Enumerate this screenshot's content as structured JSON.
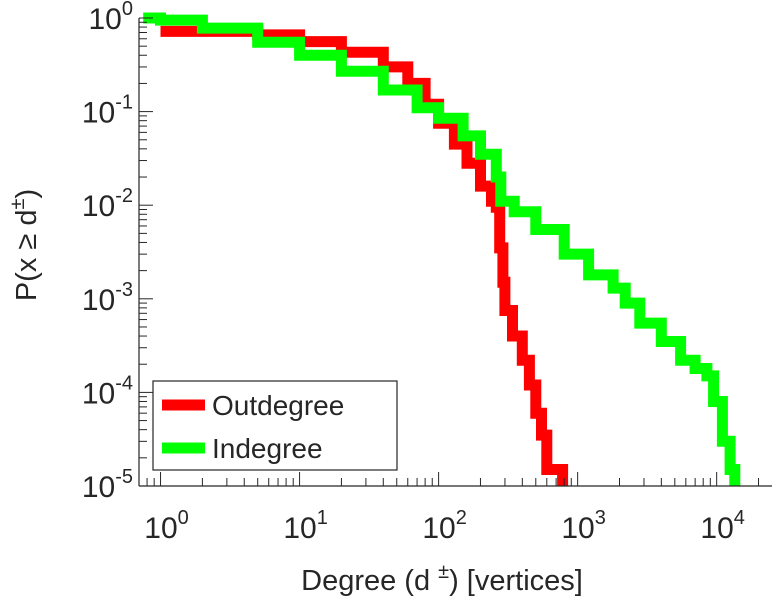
{
  "chart_data": {
    "type": "line",
    "xscale": "log",
    "yscale": "log",
    "xlim": [
      0.7,
      25000
    ],
    "ylim": [
      1e-05,
      1
    ],
    "xticks": [
      {
        "value": 1,
        "base": "10",
        "exp": "0"
      },
      {
        "value": 10,
        "base": "10",
        "exp": "1"
      },
      {
        "value": 100,
        "base": "10",
        "exp": "2"
      },
      {
        "value": 1000,
        "base": "10",
        "exp": "3"
      },
      {
        "value": 10000,
        "base": "10",
        "exp": "4"
      }
    ],
    "yticks": [
      {
        "value": 1,
        "base": "10",
        "exp": "0"
      },
      {
        "value": 0.1,
        "base": "10",
        "exp": "-1"
      },
      {
        "value": 0.01,
        "base": "10",
        "exp": "-2"
      },
      {
        "value": 0.001,
        "base": "10",
        "exp": "-3"
      },
      {
        "value": 0.0001,
        "base": "10",
        "exp": "-4"
      },
      {
        "value": 1e-05,
        "base": "10",
        "exp": "-5"
      }
    ],
    "xlabel": {
      "pre": "Degree (d",
      "sup": "±",
      "post": ") [vertices]"
    },
    "ylabel": {
      "pre": "P(x ≥ d",
      "sup": "±",
      "post": ")"
    },
    "grid": false,
    "legend_position": "bottom-left",
    "series": [
      {
        "name": "Outdegree",
        "color": "#ff0000",
        "points": [
          [
            1,
            0.72
          ],
          [
            2,
            0.72
          ],
          [
            5,
            0.66
          ],
          [
            10,
            0.56
          ],
          [
            20,
            0.43
          ],
          [
            40,
            0.3
          ],
          [
            60,
            0.2
          ],
          [
            80,
            0.12
          ],
          [
            100,
            0.075
          ],
          [
            130,
            0.045
          ],
          [
            160,
            0.028
          ],
          [
            200,
            0.016
          ],
          [
            240,
            0.011
          ],
          [
            260,
            0.0095
          ],
          [
            275,
            0.0035
          ],
          [
            290,
            0.0015
          ],
          [
            300,
            0.00075
          ],
          [
            340,
            0.0004
          ],
          [
            400,
            0.00022
          ],
          [
            450,
            0.00012
          ],
          [
            500,
            6e-05
          ],
          [
            550,
            3.5e-05
          ],
          [
            600,
            1.5e-05
          ],
          [
            650,
            1.5e-05
          ],
          [
            700,
            1.5e-05
          ],
          [
            750,
            1.5e-05
          ],
          [
            780,
            6.8e-06
          ]
        ]
      },
      {
        "name": "Indegree",
        "color": "#00ff00",
        "points": [
          [
            0.75,
            1
          ],
          [
            1,
            0.95
          ],
          [
            2,
            0.78
          ],
          [
            5,
            0.55
          ],
          [
            10,
            0.4
          ],
          [
            20,
            0.27
          ],
          [
            40,
            0.17
          ],
          [
            70,
            0.11
          ],
          [
            100,
            0.085
          ],
          [
            150,
            0.055
          ],
          [
            200,
            0.035
          ],
          [
            260,
            0.02
          ],
          [
            280,
            0.011
          ],
          [
            350,
            0.0085
          ],
          [
            500,
            0.0055
          ],
          [
            800,
            0.003
          ],
          [
            1200,
            0.0018
          ],
          [
            1800,
            0.0013
          ],
          [
            2200,
            0.0009
          ],
          [
            2800,
            0.00055
          ],
          [
            4000,
            0.00035
          ],
          [
            5500,
            0.00022
          ],
          [
            7000,
            0.00018
          ],
          [
            8500,
            0.00015
          ],
          [
            9500,
            8e-05
          ],
          [
            11000,
            3e-05
          ],
          [
            12500,
            1.5e-05
          ],
          [
            13500,
            6.8e-06
          ]
        ]
      }
    ]
  }
}
